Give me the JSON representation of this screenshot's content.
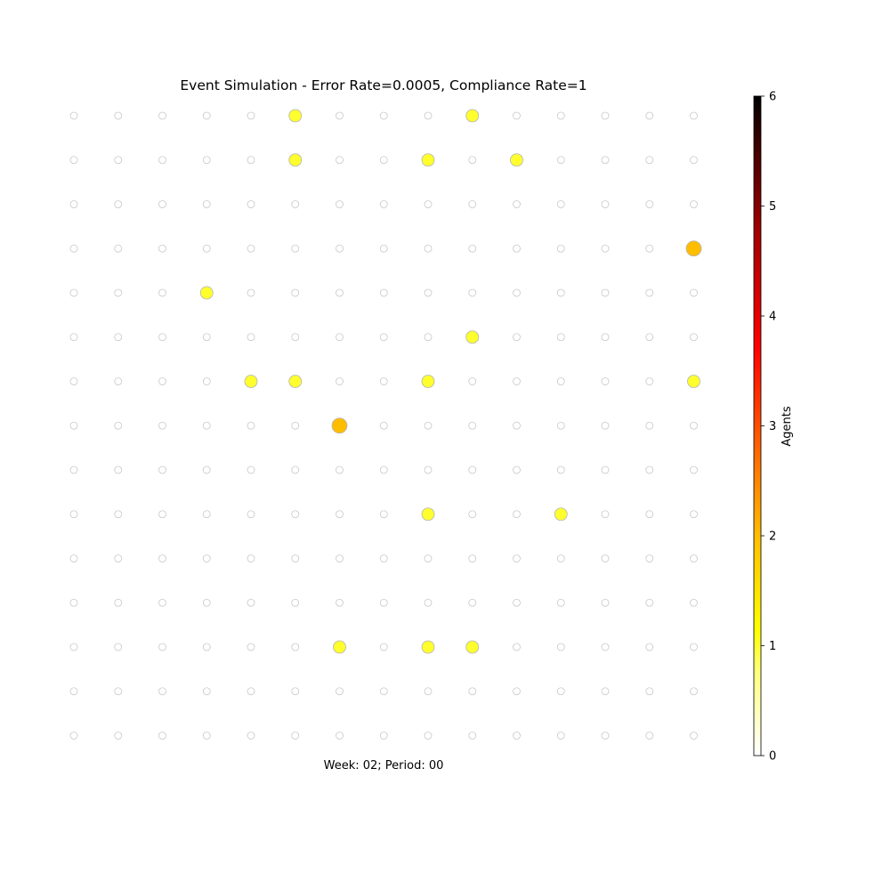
{
  "chart_data": {
    "type": "scatter",
    "title": "Event Simulation - Error Rate=0.0005, Compliance Rate=1",
    "footer_label": "Week: 02; Period: 00",
    "grid": {
      "columns": 15,
      "rows": 15
    },
    "occupied_cells": [
      {
        "col": 5,
        "row": 0,
        "agents": 1
      },
      {
        "col": 9,
        "row": 0,
        "agents": 1
      },
      {
        "col": 5,
        "row": 1,
        "agents": 1
      },
      {
        "col": 8,
        "row": 1,
        "agents": 1
      },
      {
        "col": 10,
        "row": 1,
        "agents": 1
      },
      {
        "col": 14,
        "row": 3,
        "agents": 2
      },
      {
        "col": 3,
        "row": 4,
        "agents": 1
      },
      {
        "col": 9,
        "row": 5,
        "agents": 1
      },
      {
        "col": 4,
        "row": 6,
        "agents": 1
      },
      {
        "col": 5,
        "row": 6,
        "agents": 1
      },
      {
        "col": 8,
        "row": 6,
        "agents": 1
      },
      {
        "col": 14,
        "row": 6,
        "agents": 1
      },
      {
        "col": 6,
        "row": 7,
        "agents": 2
      },
      {
        "col": 8,
        "row": 9,
        "agents": 1
      },
      {
        "col": 11,
        "row": 9,
        "agents": 1
      },
      {
        "col": 6,
        "row": 12,
        "agents": 1
      },
      {
        "col": 8,
        "row": 12,
        "agents": 1
      },
      {
        "col": 9,
        "row": 12,
        "agents": 1
      }
    ],
    "colorbar": {
      "label": "Agents",
      "range": [
        0,
        6
      ],
      "ticks": [
        "0",
        "1",
        "2",
        "3",
        "4",
        "5",
        "6"
      ],
      "colormap": "hot_r"
    },
    "colors": {
      "empty_marker_edge": "#c8c8c8",
      "occupied_marker_edge": "#b4b4b4"
    }
  }
}
